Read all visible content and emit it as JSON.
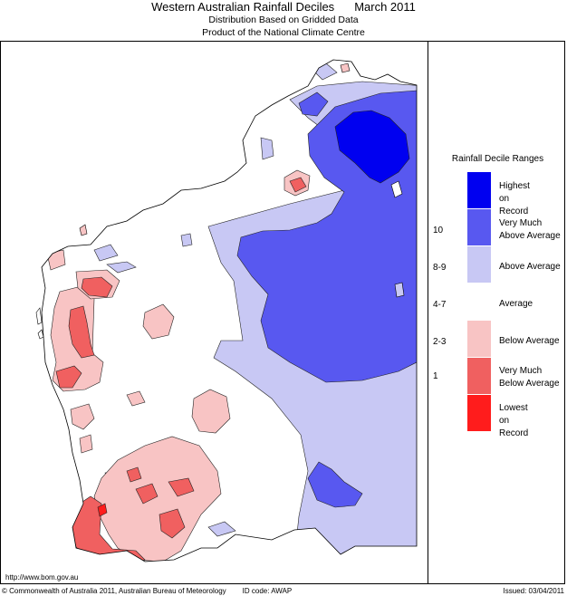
{
  "header": {
    "title": "Western Australian Rainfall Deciles",
    "period": "March 2011",
    "subtitle1": "Distribution Based on Gridded Data",
    "subtitle2": "Product of the National Climate Centre"
  },
  "legend": {
    "title": "Rainfall Decile Ranges",
    "categories": [
      {
        "label": "Highest on Record",
        "color": "#0000f0",
        "decile": ""
      },
      {
        "label": "Very Much Above Average",
        "color": "#5858f0",
        "decile": "10"
      },
      {
        "label": "Above Average",
        "color": "#c8c8f4",
        "decile": "8-9"
      },
      {
        "label": "Average",
        "color": "#ffffff",
        "decile": "4-7"
      },
      {
        "label": "Below Average",
        "color": "#f8c4c4",
        "decile": "2-3"
      },
      {
        "label": "Very Much Below Average",
        "color": "#f06060",
        "decile": "1"
      },
      {
        "label": "Lowest on Record",
        "color": "#ff1c1c",
        "decile": ""
      }
    ]
  },
  "footer": {
    "url": "http://www.bom.gov.au",
    "copyright": "© Commonwealth of Australia 2011, Australian Bureau of Meteorology",
    "id_code": "ID code: AWAP",
    "issued": "Issued: 03/04/2011"
  }
}
